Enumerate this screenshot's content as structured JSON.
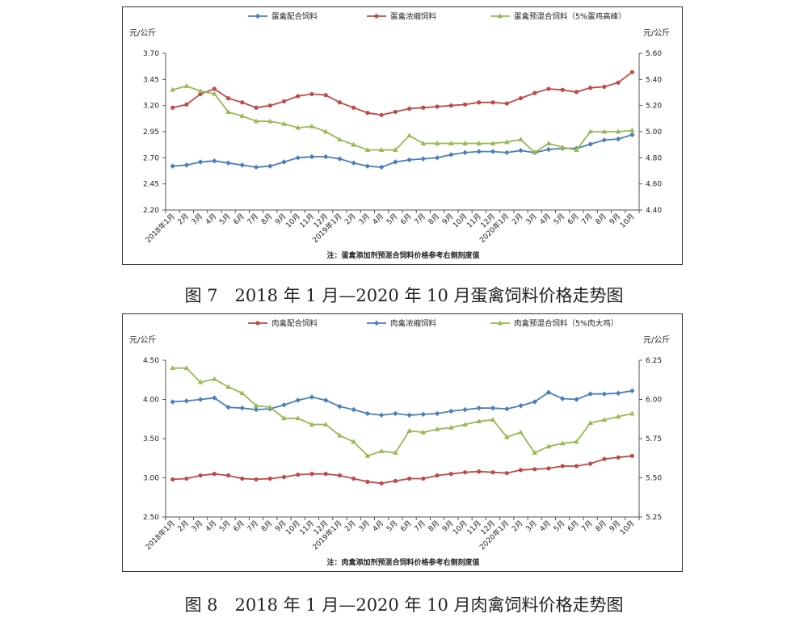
{
  "chart_data": [
    {
      "type": "line",
      "caption": "图 7　2018 年 1 月—2020 年 10 月蛋禽饲料价格走势图",
      "x_labels": [
        "2018年1月",
        "2月",
        "3月",
        "4月",
        "5月",
        "6月",
        "7月",
        "8月",
        "9月",
        "10月",
        "11月",
        "12月",
        "2019年1月",
        "2月",
        "3月",
        "4月",
        "5月",
        "6月",
        "7月",
        "8月",
        "9月",
        "10月",
        "11月",
        "12月",
        "2020年1月",
        "2月",
        "3月",
        "4月",
        "5月",
        "6月",
        "7月",
        "8月",
        "9月",
        "10月"
      ],
      "y_left": {
        "unit": "元/公斤",
        "min": 2.2,
        "max": 3.7,
        "ticks": [
          "2.20",
          "2.45",
          "2.70",
          "2.95",
          "3.20",
          "3.45",
          "3.70"
        ]
      },
      "y_right": {
        "unit": "元/公斤",
        "min": 4.4,
        "max": 5.6,
        "ticks": [
          "4.40",
          "4.60",
          "4.80",
          "5.00",
          "5.20",
          "5.40",
          "5.60"
        ]
      },
      "grid": false,
      "legend_position": "top",
      "note": "注：蛋禽添加剂预混合饲料价格参考右侧刻度值",
      "series": [
        {
          "name": "蛋禽配合饲料",
          "axis": "left",
          "color": "#4a7ebb",
          "marker": "diamond",
          "values": [
            2.62,
            2.63,
            2.66,
            2.67,
            2.65,
            2.63,
            2.61,
            2.62,
            2.66,
            2.7,
            2.71,
            2.71,
            2.69,
            2.65,
            2.62,
            2.61,
            2.66,
            2.68,
            2.69,
            2.7,
            2.73,
            2.75,
            2.76,
            2.76,
            2.75,
            2.77,
            2.75,
            2.78,
            2.79,
            2.79,
            2.83,
            2.87,
            2.88,
            2.92
          ]
        },
        {
          "name": "蛋禽浓缩饲料",
          "axis": "left",
          "color": "#be4b48",
          "marker": "circle",
          "values": [
            3.18,
            3.21,
            3.31,
            3.36,
            3.27,
            3.23,
            3.18,
            3.2,
            3.24,
            3.29,
            3.31,
            3.3,
            3.23,
            3.18,
            3.13,
            3.11,
            3.14,
            3.17,
            3.18,
            3.19,
            3.2,
            3.21,
            3.23,
            3.23,
            3.22,
            3.27,
            3.32,
            3.36,
            3.35,
            3.33,
            3.37,
            3.38,
            3.42,
            3.52
          ]
        },
        {
          "name": "蛋禽预混合饲料（5%蛋鸡高峰）",
          "axis": "right",
          "color": "#98b954",
          "marker": "triangle",
          "values": [
            5.32,
            5.35,
            5.31,
            5.29,
            5.15,
            5.12,
            5.08,
            5.08,
            5.06,
            5.03,
            5.04,
            5.0,
            4.94,
            4.9,
            4.86,
            4.86,
            4.86,
            4.97,
            4.91,
            4.91,
            4.91,
            4.91,
            4.91,
            4.91,
            4.92,
            4.94,
            4.84,
            4.91,
            4.88,
            4.86,
            5.0,
            5.0,
            5.0,
            5.01
          ]
        }
      ]
    },
    {
      "type": "line",
      "caption": "图 8　2018 年 1 月—2020 年 10 月肉禽饲料价格走势图",
      "x_labels": [
        "2018年1月",
        "2月",
        "3月",
        "4月",
        "5月",
        "6月",
        "7月",
        "8月",
        "9月",
        "10月",
        "11月",
        "12月",
        "2019年1月",
        "2月",
        "3月",
        "4月",
        "5月",
        "6月",
        "7月",
        "8月",
        "9月",
        "10月",
        "11月",
        "12月",
        "2020年1月",
        "2月",
        "3月",
        "4月",
        "5月",
        "6月",
        "7月",
        "8月",
        "9月",
        "10月"
      ],
      "y_left": {
        "unit": "元/公斤",
        "min": 2.5,
        "max": 4.5,
        "ticks": [
          "2.50",
          "3.00",
          "3.50",
          "4.00",
          "4.50"
        ]
      },
      "y_right": {
        "unit": "元/公斤",
        "min": 5.25,
        "max": 6.25,
        "ticks": [
          "5.25",
          "5.50",
          "5.75",
          "6.00",
          "6.25"
        ]
      },
      "grid": false,
      "legend_position": "top",
      "note": "注：肉禽添加剂预混合饲料价格参考右侧刻度值",
      "series": [
        {
          "name": "肉禽配合饲料",
          "axis": "left",
          "color": "#be4b48",
          "marker": "circle",
          "values": [
            2.98,
            2.99,
            3.03,
            3.05,
            3.03,
            2.99,
            2.98,
            2.99,
            3.01,
            3.04,
            3.05,
            3.05,
            3.03,
            2.99,
            2.95,
            2.93,
            2.96,
            2.99,
            2.99,
            3.03,
            3.05,
            3.07,
            3.08,
            3.07,
            3.06,
            3.1,
            3.11,
            3.12,
            3.15,
            3.15,
            3.18,
            3.24,
            3.26,
            3.28
          ]
        },
        {
          "name": "肉禽浓缩饲料",
          "axis": "left",
          "color": "#4a7ebb",
          "marker": "diamond",
          "values": [
            3.97,
            3.98,
            4.0,
            4.02,
            3.9,
            3.89,
            3.87,
            3.88,
            3.93,
            3.99,
            4.03,
            3.99,
            3.91,
            3.87,
            3.82,
            3.8,
            3.82,
            3.8,
            3.81,
            3.82,
            3.85,
            3.87,
            3.89,
            3.89,
            3.88,
            3.92,
            3.97,
            4.09,
            4.01,
            4.0,
            4.07,
            4.07,
            4.08,
            4.11
          ]
        },
        {
          "name": "肉禽预混合饲料（5%肉大鸡）",
          "axis": "right",
          "color": "#98b954",
          "marker": "triangle",
          "values": [
            6.2,
            6.2,
            6.11,
            6.13,
            6.08,
            6.04,
            5.96,
            5.95,
            5.88,
            5.88,
            5.84,
            5.84,
            5.77,
            5.73,
            5.64,
            5.67,
            5.66,
            5.8,
            5.79,
            5.81,
            5.82,
            5.84,
            5.86,
            5.87,
            5.76,
            5.79,
            5.66,
            5.7,
            5.72,
            5.73,
            5.85,
            5.87,
            5.89,
            5.91
          ]
        }
      ]
    }
  ]
}
